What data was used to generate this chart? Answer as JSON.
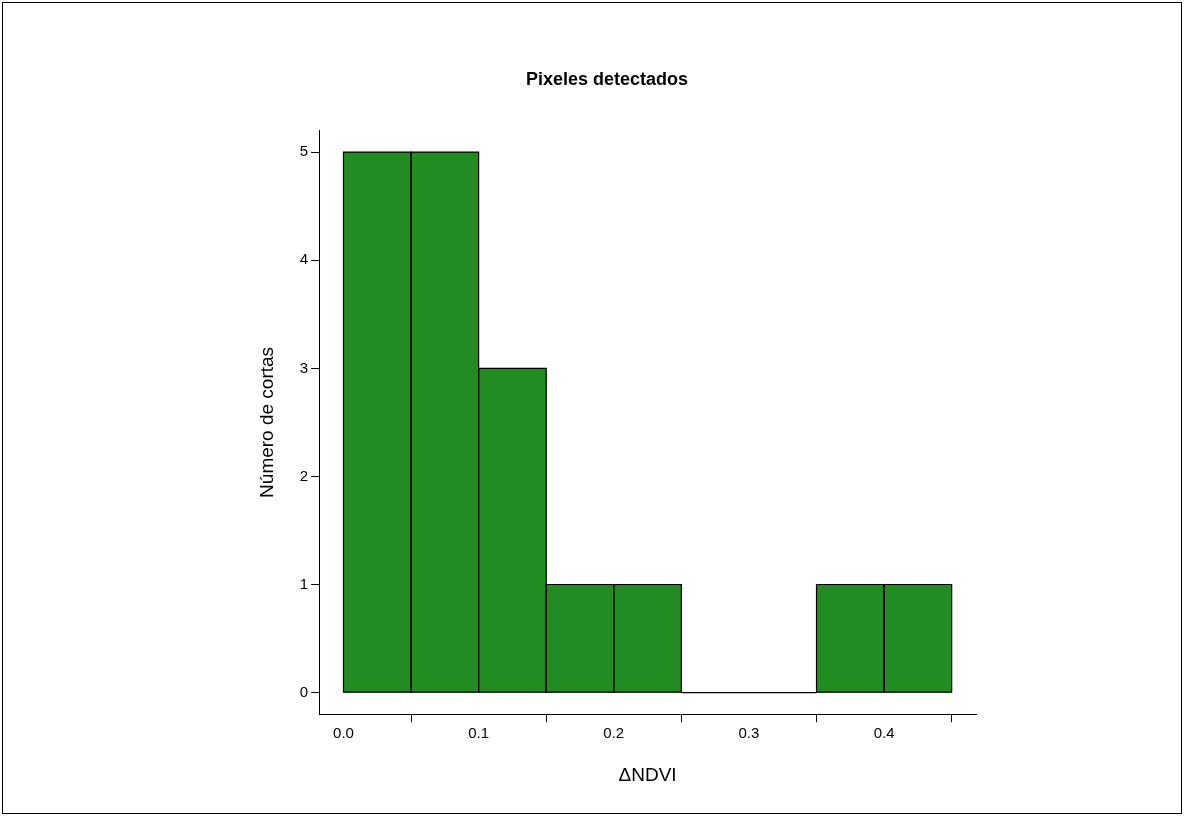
{
  "chart_data": {
    "type": "histogram",
    "title": "Pixeles detectados",
    "xlabel": "ΔNDVI",
    "ylabel": "Número de cortas",
    "bins": [
      0,
      0.05,
      0.1,
      0.15,
      0.2,
      0.25,
      0.3,
      0.35,
      0.4,
      0.45
    ],
    "values": [
      5,
      5,
      3,
      1,
      1,
      0,
      0,
      1,
      1
    ],
    "color": "#228b22",
    "xlim": [
      -0.018,
      0.468
    ],
    "ylim": [
      -0.2,
      5.2
    ],
    "xticks": [
      {
        "value": 0,
        "label": "0.0"
      },
      {
        "value": 0.1,
        "label": "0.1"
      },
      {
        "value": 0.2,
        "label": "0.2"
      },
      {
        "value": 0.3,
        "label": "0.3"
      },
      {
        "value": 0.4,
        "label": "0.4"
      }
    ],
    "yticks": [
      0,
      1,
      2,
      3,
      4,
      5
    ]
  }
}
